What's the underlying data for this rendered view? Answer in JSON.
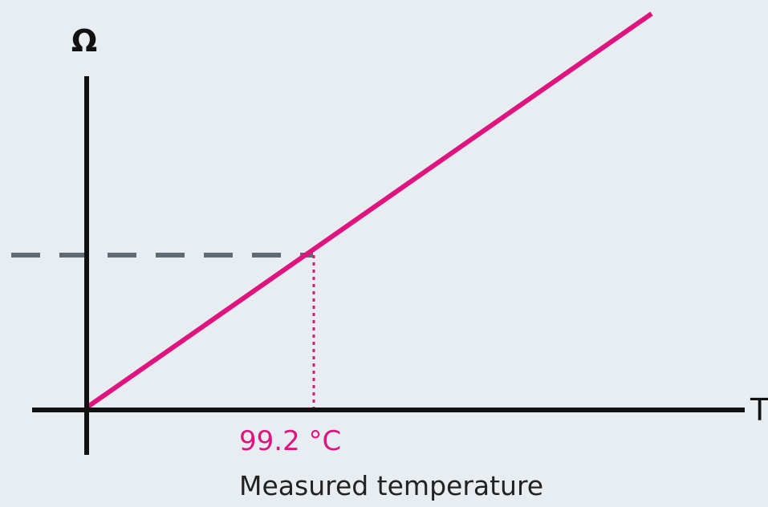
{
  "diagram": {
    "y_axis_label": "Ω",
    "x_axis_label": "T",
    "measured_value_label": "99.2 °C",
    "measured_caption": "Measured temperature"
  },
  "colors": {
    "background": "#e8edf1",
    "axis": "#111111",
    "line": "#e0147f",
    "guide_dashed": "#5f6b73",
    "value_text": "#e0147f",
    "caption_text": "#222222"
  }
}
